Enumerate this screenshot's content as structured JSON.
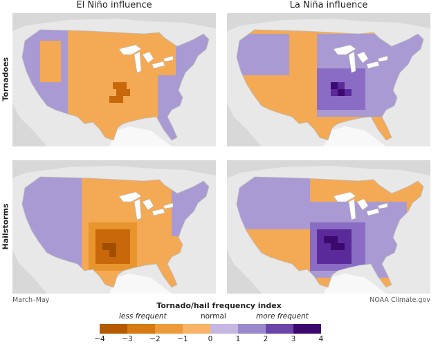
{
  "columns": {
    "left": "El Niño influence",
    "right": "La Niña influence"
  },
  "rows": {
    "top": "Tornadoes",
    "bottom": "Hailstorms"
  },
  "footer": {
    "left": "March–May",
    "right": "NOAA Climate.gov"
  },
  "legend": {
    "title": "Tornado/hail frequency index",
    "less": "less frequent",
    "normal": "normal",
    "more": "more frequent",
    "ticks": [
      "−4",
      "−3",
      "−2",
      "−1",
      "0",
      "1",
      "2",
      "3",
      "4"
    ],
    "colors": [
      "#b55a00",
      "#d67a12",
      "#ef9a38",
      "#fab46a",
      "#c5b6e2",
      "#9a8acb",
      "#6b46a8",
      "#3c0a6e"
    ]
  },
  "colors": {
    "land": "#f4a955",
    "normal_plus": "#a99ad3",
    "more": "#8a6cc4",
    "most": "#5a2a9a",
    "darkest": "#3c0a6e",
    "less": "#e9952e",
    "lesser": "#c8680a",
    "least": "#a14e00",
    "background": "#e8e8e8",
    "water": "#ffffff",
    "outline": "#bbbbbb"
  }
}
